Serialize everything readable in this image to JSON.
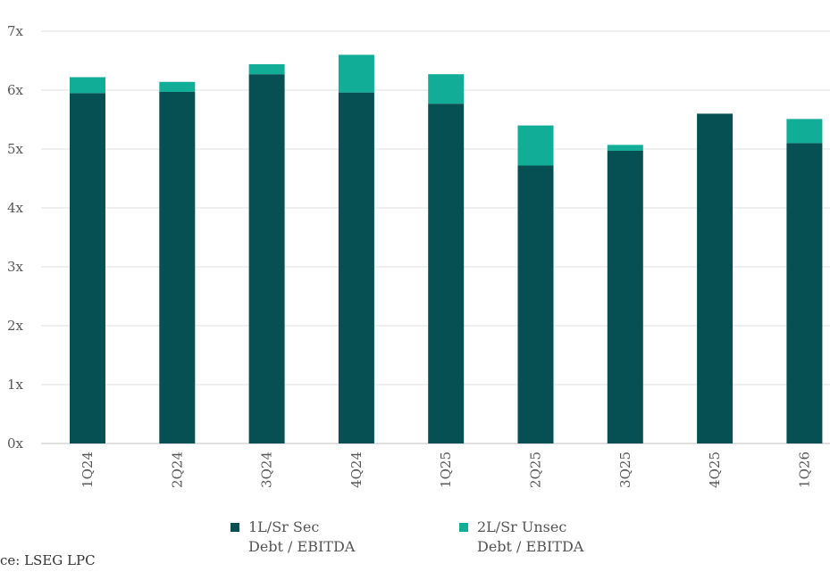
{
  "chart_data": {
    "type": "bar",
    "stacked": true,
    "categories": [
      "1Q24",
      "2Q24",
      "3Q24",
      "4Q24",
      "1Q25",
      "2Q25",
      "3Q25",
      "4Q25",
      "1Q26"
    ],
    "series": [
      {
        "name": "1L/Sr Sec Debt / EBITDA",
        "color": "#064f52",
        "values": [
          5.95,
          5.97,
          6.27,
          5.96,
          5.77,
          4.72,
          4.97,
          5.6,
          5.1
        ]
      },
      {
        "name": "2L/Sr Unsec Debt / EBITDA",
        "color": "#12ad97",
        "values": [
          0.27,
          0.17,
          0.17,
          0.64,
          0.5,
          0.68,
          0.1,
          0,
          0.41
        ]
      }
    ],
    "y_ticks": [
      "0x",
      "1x",
      "2x",
      "3x",
      "4x",
      "5x",
      "6x",
      "7x"
    ],
    "ylim": [
      0,
      7
    ],
    "grid": true,
    "legend": [
      {
        "line1": "1L/Sr Sec",
        "line2": "Debt / EBITDA"
      },
      {
        "line1": "2L/Sr Unsec",
        "line2": "Debt / EBITDA"
      }
    ]
  },
  "source": "ce: LSEG LPC"
}
